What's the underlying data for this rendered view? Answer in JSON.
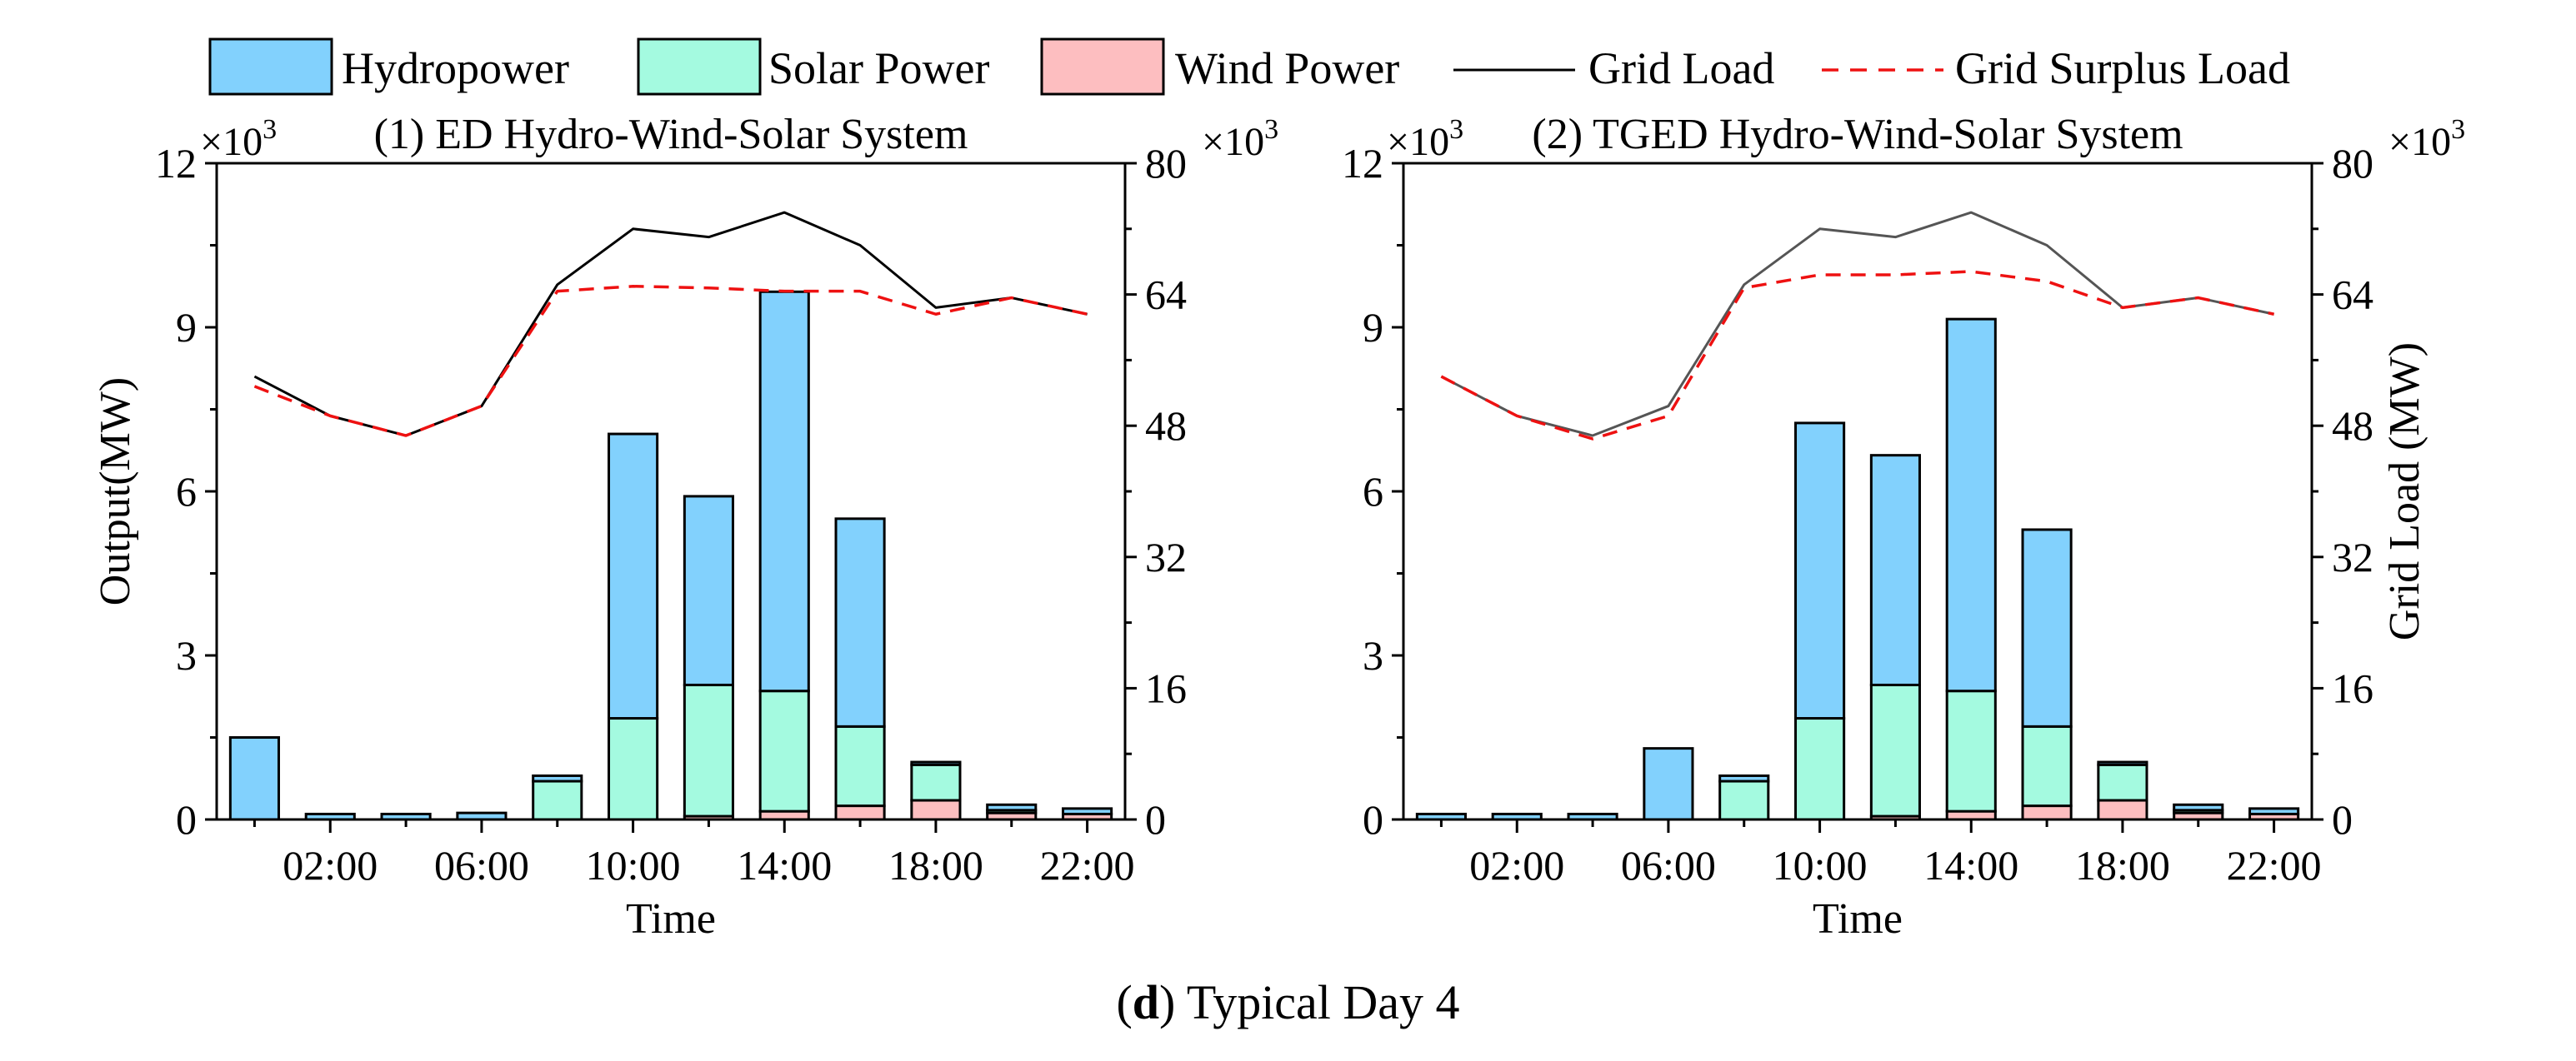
{
  "legend": {
    "hydro": "Hydropower",
    "solar": "Solar Power",
    "wind": "Wind Power",
    "load": "Grid Load",
    "surplus": "Grid Surplus Load"
  },
  "colors": {
    "hydro": "#82D1FD",
    "solar": "#A4FAE0",
    "wind": "#FDBEC0",
    "load": "#000000",
    "load_panel2": "#555555",
    "surplus": "#EE1111"
  },
  "caption": {
    "letter": "d",
    "text": "Typical Day 4"
  },
  "chart_data": [
    {
      "type": "bar",
      "stacked": true,
      "title": "(1) ED Hydro-Wind-Solar System",
      "xlabel": "Time",
      "ylabel": "Output(MW)",
      "y2label": "",
      "ylim": [
        0,
        12
      ],
      "y_multiplier": "×10³",
      "y2lim": [
        0,
        80
      ],
      "y2_multiplier": "×10³",
      "yticks": [
        "0",
        "3",
        "6",
        "9",
        "12"
      ],
      "y2ticks": [
        "0",
        "16",
        "32",
        "48",
        "64",
        "80"
      ],
      "xtick_labels": [
        "02:00",
        "06:00",
        "10:00",
        "14:00",
        "18:00",
        "22:00"
      ],
      "categories": [
        "00:00",
        "02:00",
        "04:00",
        "06:00",
        "08:00",
        "10:00",
        "12:00",
        "14:00",
        "16:00",
        "18:00",
        "20:00",
        "22:00"
      ],
      "series": [
        {
          "name": "Wind Power",
          "values": [
            0.0,
            0.0,
            0.0,
            0.0,
            0.0,
            0.0,
            0.06,
            0.15,
            0.25,
            0.35,
            0.12,
            0.1
          ]
        },
        {
          "name": "Solar Power",
          "values": [
            0.0,
            0.0,
            0.0,
            0.0,
            0.7,
            1.85,
            2.4,
            2.2,
            1.45,
            0.65,
            0.05,
            0.0
          ]
        },
        {
          "name": "Hydropower",
          "values": [
            1.5,
            0.1,
            0.1,
            0.12,
            0.1,
            5.2,
            3.45,
            7.3,
            3.8,
            0.05,
            0.1,
            0.1
          ]
        }
      ],
      "lines": [
        {
          "name": "Grid Load",
          "values": [
            54,
            49.2,
            46.8,
            50.4,
            65.2,
            72,
            71,
            74,
            70,
            62.4,
            63.6,
            61.6
          ]
        },
        {
          "name": "Grid Surplus Load",
          "values": [
            52.8,
            49.2,
            46.8,
            50.4,
            64.4,
            65,
            64.8,
            64.4,
            64.4,
            61.6,
            63.6,
            61.6
          ]
        }
      ]
    },
    {
      "type": "bar",
      "stacked": true,
      "title": "(2) TGED Hydro-Wind-Solar System",
      "xlabel": "Time",
      "ylabel": "",
      "y2label": "Grid Load (MW)",
      "ylim": [
        0,
        12
      ],
      "y_multiplier": "×10³",
      "y2lim": [
        0,
        80
      ],
      "y2_multiplier": "×10³",
      "yticks": [
        "0",
        "3",
        "6",
        "9",
        "12"
      ],
      "y2ticks": [
        "0",
        "16",
        "32",
        "48",
        "64",
        "80"
      ],
      "xtick_labels": [
        "02:00",
        "06:00",
        "10:00",
        "14:00",
        "18:00",
        "22:00"
      ],
      "categories": [
        "00:00",
        "02:00",
        "04:00",
        "06:00",
        "08:00",
        "10:00",
        "12:00",
        "14:00",
        "16:00",
        "18:00",
        "20:00",
        "22:00"
      ],
      "series": [
        {
          "name": "Wind Power",
          "values": [
            0.0,
            0.0,
            0.0,
            0.0,
            0.0,
            0.0,
            0.06,
            0.15,
            0.25,
            0.35,
            0.12,
            0.1
          ]
        },
        {
          "name": "Solar Power",
          "values": [
            0.0,
            0.0,
            0.0,
            0.0,
            0.7,
            1.85,
            2.4,
            2.2,
            1.45,
            0.65,
            0.05,
            0.0
          ]
        },
        {
          "name": "Hydropower",
          "values": [
            0.1,
            0.1,
            0.1,
            1.3,
            0.1,
            5.4,
            4.2,
            6.8,
            3.6,
            0.05,
            0.1,
            0.1
          ]
        }
      ],
      "lines": [
        {
          "name": "Grid Load",
          "values": [
            54,
            49.2,
            46.8,
            50.4,
            65.2,
            72,
            71,
            74,
            70,
            62.4,
            63.6,
            61.6
          ]
        },
        {
          "name": "Grid Surplus Load",
          "values": [
            54,
            49.2,
            46.4,
            49.2,
            64.8,
            66.4,
            66.4,
            66.8,
            65.6,
            62.4,
            63.6,
            61.6
          ]
        }
      ]
    }
  ]
}
